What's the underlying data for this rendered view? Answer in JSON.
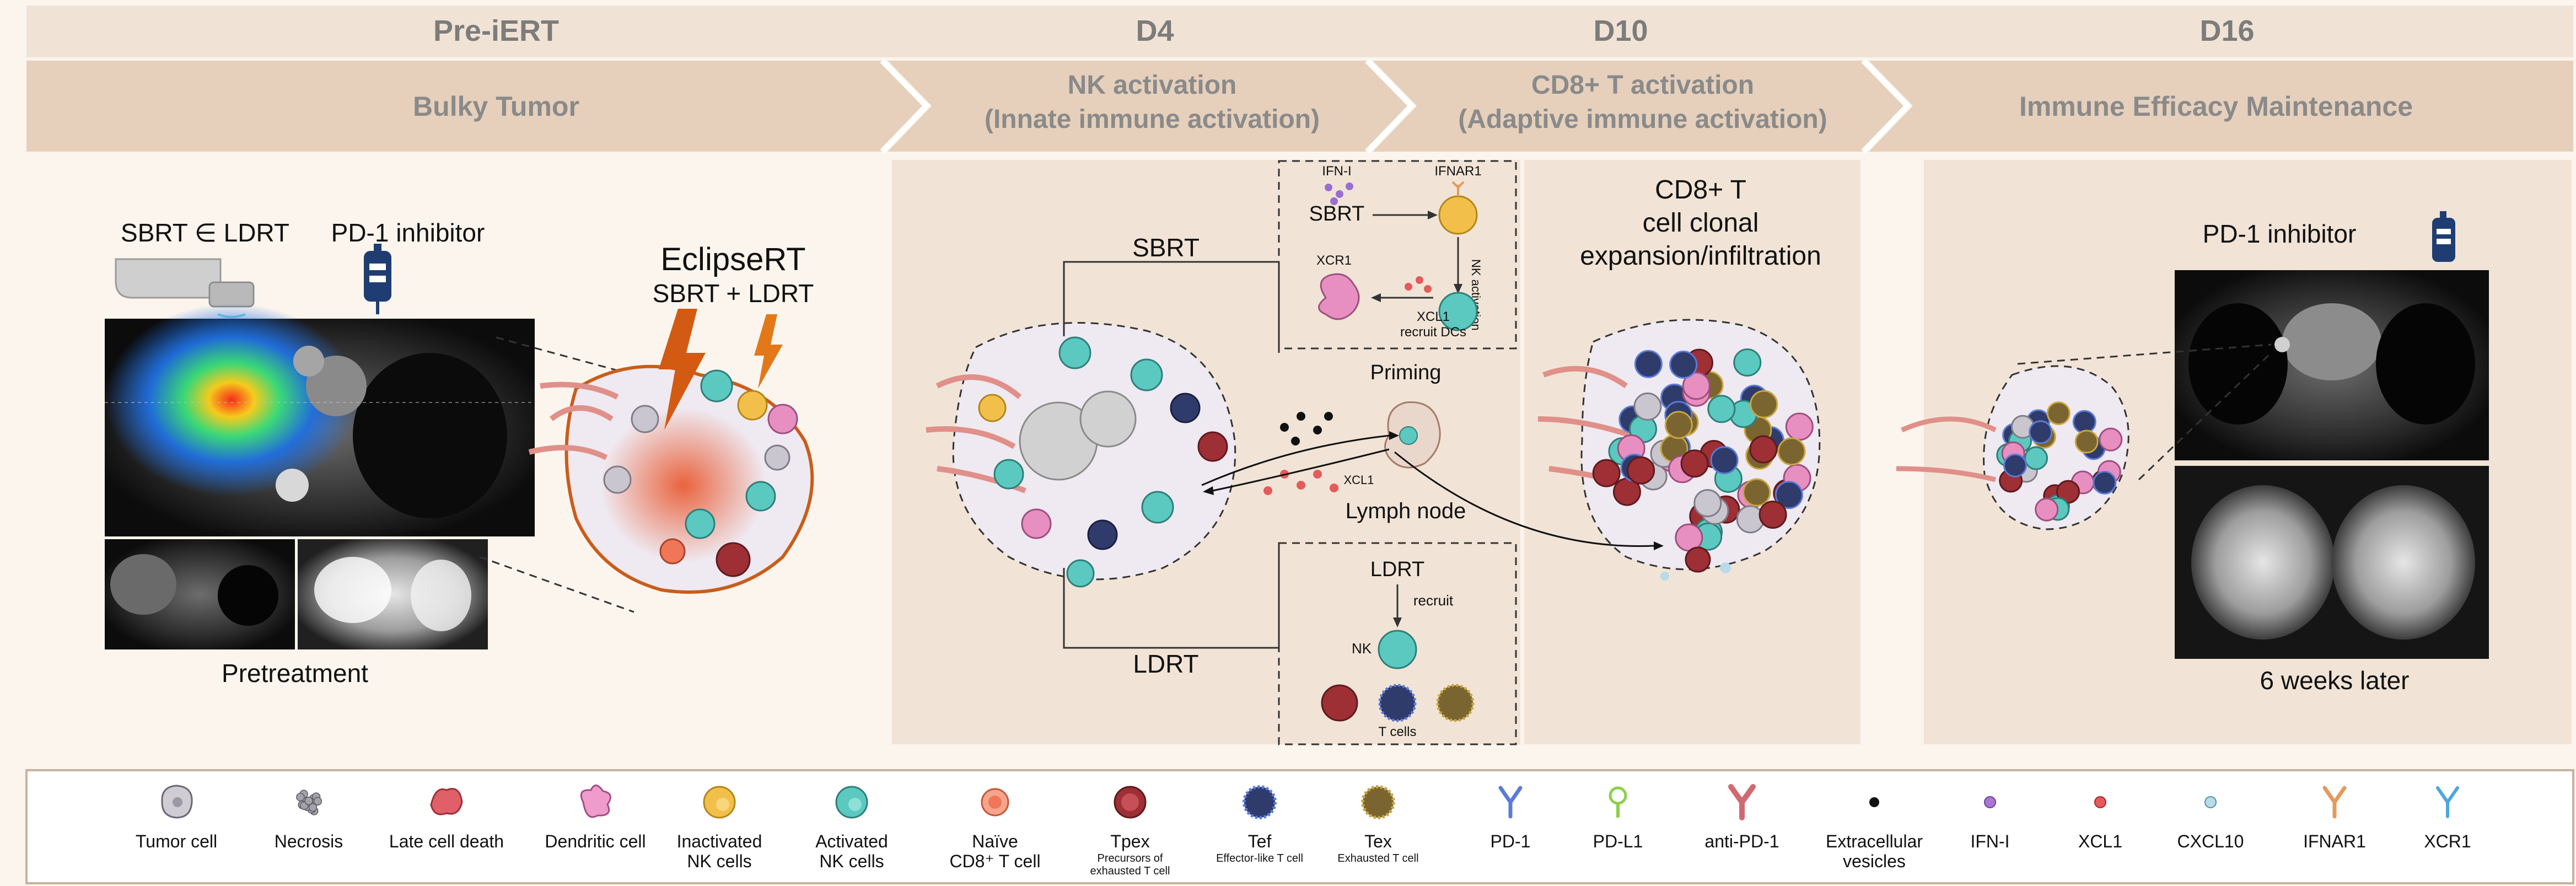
{
  "timeline": {
    "phase_pre": "Pre-iERT",
    "phase_d4": "D4",
    "phase_d10": "D10",
    "phase_d16": "D16"
  },
  "stages": {
    "bulky": "Bulky Tumor",
    "nk_line1": "NK activation",
    "nk_line2": "(Innate immune activation)",
    "cd8_line1": "CD8+ T activation",
    "cd8_line2": "(Adaptive immune activation)",
    "maintenance": "Immune Efficacy Maintenance"
  },
  "panel_pre": {
    "sbrt_ldrt": "SBRT ∈ LDRT",
    "pd1_inhibitor": "PD-1 inhibitor",
    "eclipse_title": "EclipseRT",
    "eclipse_sub": "SBRT + LDRT",
    "pretreatment": "Pretreatment"
  },
  "panel_d4": {
    "sbrt": "SBRT",
    "ldrt": "LDRT",
    "ifn": "IFN-I",
    "ifnar1": "IFNAR1",
    "box_sbrt": "SBRT",
    "xcr1": "XCR1",
    "nk_activation": "NK activation",
    "xcl1_recruit_1": "XCL1",
    "xcl1_recruit_2": "recruit DCs",
    "priming": "Priming",
    "xcl1_small": "XCL1",
    "lymph_node": "Lymph node",
    "box_ldrt": "LDRT",
    "recruit": "recruit",
    "nk": "NK",
    "t_cells": "T cells"
  },
  "panel_d10": {
    "line1": "CD8+ T",
    "line2": "cell clonal",
    "line3": "expansion/infiltration"
  },
  "panel_d16": {
    "pd1_inhibitor": "PD-1 inhibitor",
    "six_weeks": "6 weeks later"
  },
  "legend": [
    {
      "label": "Tumor cell",
      "sub": "",
      "sub2": ""
    },
    {
      "label": "Necrosis",
      "sub": "",
      "sub2": ""
    },
    {
      "label": "Late cell death",
      "sub": "",
      "sub2": ""
    },
    {
      "label": "Dendritic cell",
      "sub": "",
      "sub2": ""
    },
    {
      "label": "Inactivated",
      "sub": "NK cells",
      "sub2": ""
    },
    {
      "label": "Activated",
      "sub": "NK cells",
      "sub2": ""
    },
    {
      "label": "Naïve",
      "sub": "CD8⁺ T cell",
      "sub2": ""
    },
    {
      "label": "Tpex",
      "sub": "Precursors of",
      "sub2": "exhausted T cell"
    },
    {
      "label": "Tef",
      "sub": "Effector-like T cell",
      "sub2": ""
    },
    {
      "label": "Tex",
      "sub": "Exhausted T cell",
      "sub2": ""
    },
    {
      "label": "PD-1",
      "sub": "",
      "sub2": ""
    },
    {
      "label": "PD-L1",
      "sub": "",
      "sub2": ""
    },
    {
      "label": "anti-PD-1",
      "sub": "",
      "sub2": ""
    },
    {
      "label": "Extracellular",
      "sub": "vesicles",
      "sub2": ""
    },
    {
      "label": "IFN-I",
      "sub": "",
      "sub2": ""
    },
    {
      "label": "XCL1",
      "sub": "",
      "sub2": ""
    },
    {
      "label": "CXCL10",
      "sub": "",
      "sub2": ""
    },
    {
      "label": "IFNAR1",
      "sub": "",
      "sub2": ""
    },
    {
      "label": "XCR1",
      "sub": "",
      "sub2": ""
    }
  ],
  "colors": {
    "band": "#f1e4d6",
    "chevron": "#e7d2bd",
    "tumor": "#c9c6cf",
    "vessel": "#d98a80",
    "nk_active": "#5cc9c0",
    "nk_inactive": "#f2c04a",
    "tpex": "#9e2f35",
    "tef": "#2e3b6b",
    "tex": "#7a6530",
    "dc": "#e88fc2",
    "naive": "#ef7757"
  }
}
